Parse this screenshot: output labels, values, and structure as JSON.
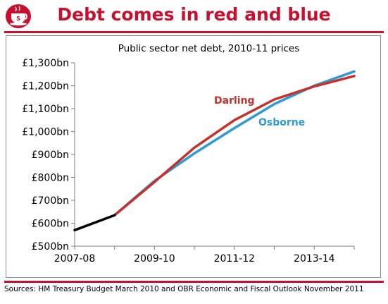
{
  "headline": "Debt comes in red and blue",
  "logo": {
    "icon": "teacup-logo-icon",
    "color": "#c8102e",
    "letter": "S"
  },
  "sources": "Sources: HM Treasury Budget March 2010 and OBR Economic and Fiscal Outlook November 2011",
  "chart_data": {
    "type": "line",
    "title": "Public sector net debt, 2010-11 prices",
    "xlabel": "",
    "ylabel": "",
    "x": [
      "2007-08",
      "2008-09",
      "2009-10",
      "2010-11",
      "2011-12",
      "2012-13",
      "2013-14",
      "2014-15"
    ],
    "x_tick_labels": [
      "2007-08",
      "2009-10",
      "2011-12",
      "2013-14"
    ],
    "y_tick_labels": [
      "£500bn",
      "£600bn",
      "£700bn",
      "£800bn",
      "£900bn",
      "£1,000bn",
      "£1,100bn",
      "£1,200bn",
      "£1,300bn"
    ],
    "ylim": [
      500,
      1300
    ],
    "grid": false,
    "series": [
      {
        "name": "",
        "color": "#000000",
        "values": [
          570,
          635,
          null,
          null,
          null,
          null,
          null,
          null
        ]
      },
      {
        "name": "Osborne",
        "color": "#2e9bd6",
        "values": [
          null,
          635,
          785,
          905,
          1015,
          1120,
          1200,
          1262
        ]
      },
      {
        "name": "Darling",
        "color": "#c8302a",
        "values": [
          null,
          635,
          780,
          930,
          1050,
          1140,
          1197,
          1242
        ]
      }
    ]
  }
}
